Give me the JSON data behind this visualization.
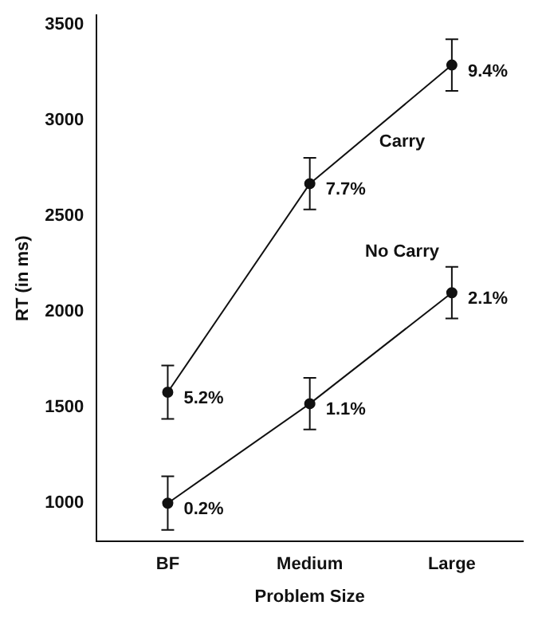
{
  "chart_data": {
    "type": "line",
    "xlabel": "Problem Size",
    "ylabel": "RT (in ms)",
    "categories": [
      "BF",
      "Medium",
      "Large"
    ],
    "series": [
      {
        "name": "Carry",
        "color": "#111111",
        "values": [
          1580,
          2670,
          3290
        ],
        "errors": [
          140,
          135,
          135
        ]
      },
      {
        "name": "No Carry",
        "color": "#111111",
        "values": [
          1000,
          1520,
          2100
        ],
        "errors": [
          140,
          135,
          135
        ]
      }
    ],
    "ylim": [
      800,
      3550
    ],
    "yticks": [
      1000,
      1500,
      2000,
      2500,
      3000,
      3500
    ],
    "grid": false,
    "legend": false,
    "marker": "circle",
    "line_style": "solid",
    "annotations": [
      {
        "text": "5.2%",
        "x": "BF",
        "y": 1580
      },
      {
        "text": "7.7%",
        "x": "Medium",
        "y": 2670
      },
      {
        "text": "9.4%",
        "x": "Large",
        "y": 3290
      },
      {
        "text": "0.2%",
        "x": "BF",
        "y": 1000
      },
      {
        "text": "1.1%",
        "x": "Medium",
        "y": 1520
      },
      {
        "text": "2.1%",
        "x": "Large",
        "y": 2100
      }
    ]
  }
}
